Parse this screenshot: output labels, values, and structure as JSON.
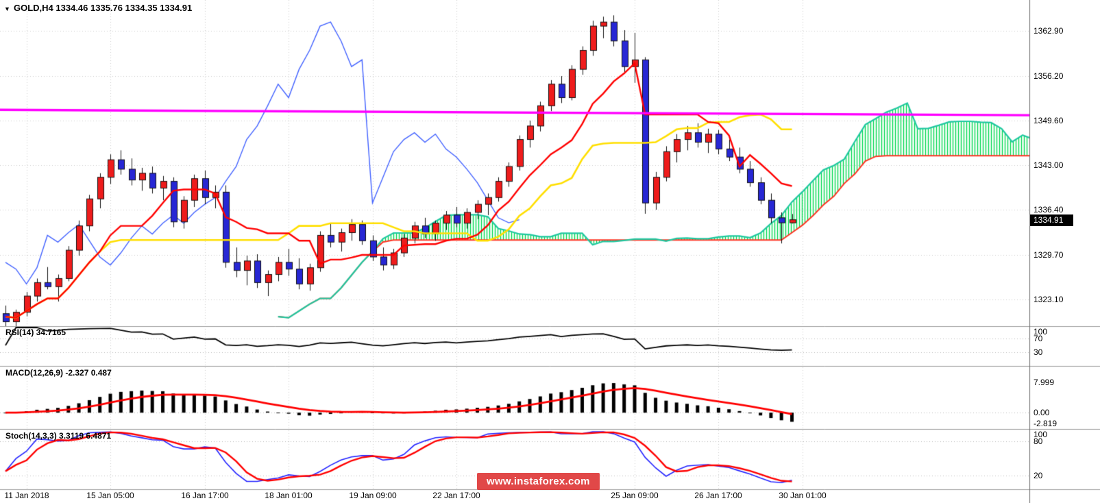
{
  "title": {
    "text": "GOLD,H4 1334.46 1335.76 1334.35 1334.91"
  },
  "watermark": {
    "text": "www.instaforex.com"
  },
  "chart_data": {
    "type": "candlestick",
    "symbol": "GOLD",
    "timeframe": "H4",
    "current_bar": {
      "open": 1334.46,
      "high": 1335.76,
      "low": 1334.35,
      "close": 1334.91
    },
    "price_axis": {
      "labels": [
        "1362.90",
        "1356.20",
        "1349.60",
        "1343.00",
        "1336.40",
        "1329.70",
        "1323.10"
      ],
      "current": 1334.91,
      "current_label": "1334.91"
    },
    "x_ticks": [
      {
        "label": "11 Jan 2018",
        "index": 2
      },
      {
        "label": "15 Jan 05:00",
        "index": 10
      },
      {
        "label": "16 Jan 17:00",
        "index": 19
      },
      {
        "label": "18 Jan 01:00",
        "index": 27
      },
      {
        "label": "19 Jan 09:00",
        "index": 35
      },
      {
        "label": "22 Jan 17:00",
        "index": 43
      },
      {
        "label": "25 Jan 09:00",
        "index": 60
      },
      {
        "label": "26 Jan 17:00",
        "index": 68
      },
      {
        "label": "30 Jan 01:00",
        "index": 76
      }
    ],
    "candles": [
      [
        1321.0,
        1322.2,
        1318.9,
        1319.8
      ],
      [
        1319.8,
        1321.6,
        1318.6,
        1321.2
      ],
      [
        1321.2,
        1324.2,
        1320.6,
        1323.6
      ],
      [
        1323.6,
        1326.2,
        1322.8,
        1325.6
      ],
      [
        1325.6,
        1327.9,
        1324.6,
        1325.0
      ],
      [
        1325.0,
        1326.8,
        1322.8,
        1326.2
      ],
      [
        1326.2,
        1331.0,
        1325.8,
        1330.4
      ],
      [
        1330.4,
        1334.8,
        1329.6,
        1334.0
      ],
      [
        1334.0,
        1338.6,
        1333.2,
        1338.0
      ],
      [
        1338.0,
        1341.8,
        1336.6,
        1341.2
      ],
      [
        1341.2,
        1344.6,
        1340.2,
        1343.8
      ],
      [
        1343.8,
        1345.2,
        1341.6,
        1342.4
      ],
      [
        1342.4,
        1344.0,
        1340.0,
        1340.8
      ],
      [
        1340.8,
        1342.6,
        1339.2,
        1341.8
      ],
      [
        1341.8,
        1342.8,
        1338.8,
        1339.6
      ],
      [
        1339.6,
        1341.4,
        1337.8,
        1340.6
      ],
      [
        1340.6,
        1341.2,
        1333.8,
        1334.6
      ],
      [
        1334.6,
        1338.4,
        1333.6,
        1337.8
      ],
      [
        1337.8,
        1341.6,
        1336.8,
        1341.0
      ],
      [
        1341.0,
        1342.2,
        1337.2,
        1338.2
      ],
      [
        1338.2,
        1340.0,
        1336.6,
        1339.0
      ],
      [
        1339.0,
        1340.0,
        1327.8,
        1328.6
      ],
      [
        1328.6,
        1330.8,
        1326.4,
        1327.4
      ],
      [
        1327.4,
        1329.6,
        1325.2,
        1328.8
      ],
      [
        1328.8,
        1329.8,
        1324.8,
        1325.6
      ],
      [
        1325.6,
        1327.4,
        1323.6,
        1326.8
      ],
      [
        1326.8,
        1329.4,
        1325.8,
        1328.6
      ],
      [
        1328.6,
        1330.6,
        1326.6,
        1327.6
      ],
      [
        1327.6,
        1329.2,
        1324.6,
        1325.4
      ],
      [
        1325.4,
        1328.4,
        1324.4,
        1327.8
      ],
      [
        1327.8,
        1333.2,
        1327.2,
        1332.6
      ],
      [
        1332.6,
        1334.4,
        1330.8,
        1331.6
      ],
      [
        1331.6,
        1333.6,
        1330.2,
        1333.0
      ],
      [
        1333.0,
        1335.0,
        1331.8,
        1334.2
      ],
      [
        1334.2,
        1334.8,
        1331.2,
        1331.8
      ],
      [
        1331.8,
        1332.6,
        1328.8,
        1329.4
      ],
      [
        1329.4,
        1330.8,
        1327.4,
        1328.2
      ],
      [
        1328.2,
        1330.6,
        1327.6,
        1330.0
      ],
      [
        1330.0,
        1332.8,
        1329.4,
        1332.2
      ],
      [
        1332.2,
        1334.6,
        1331.4,
        1334.0
      ],
      [
        1334.0,
        1335.2,
        1332.2,
        1332.8
      ],
      [
        1332.8,
        1334.8,
        1331.8,
        1334.4
      ],
      [
        1334.4,
        1336.2,
        1333.4,
        1335.6
      ],
      [
        1335.6,
        1336.8,
        1333.8,
        1334.4
      ],
      [
        1334.4,
        1336.6,
        1333.6,
        1336.0
      ],
      [
        1336.0,
        1337.8,
        1335.0,
        1337.2
      ],
      [
        1337.2,
        1338.8,
        1335.6,
        1338.2
      ],
      [
        1338.2,
        1341.2,
        1337.6,
        1340.6
      ],
      [
        1340.6,
        1343.4,
        1339.8,
        1342.8
      ],
      [
        1342.8,
        1347.4,
        1342.2,
        1346.8
      ],
      [
        1346.8,
        1349.6,
        1345.6,
        1348.8
      ],
      [
        1348.8,
        1352.4,
        1348.0,
        1351.8
      ],
      [
        1351.8,
        1355.6,
        1351.0,
        1355.0
      ],
      [
        1355.0,
        1356.2,
        1352.2,
        1353.0
      ],
      [
        1353.0,
        1357.8,
        1352.6,
        1357.2
      ],
      [
        1357.2,
        1360.6,
        1356.4,
        1360.0
      ],
      [
        1360.0,
        1364.4,
        1359.2,
        1363.6
      ],
      [
        1363.6,
        1365.0,
        1361.8,
        1364.2
      ],
      [
        1364.2,
        1365.2,
        1360.6,
        1361.4
      ],
      [
        1361.4,
        1363.0,
        1356.8,
        1357.6
      ],
      [
        1357.6,
        1362.6,
        1355.2,
        1358.6
      ],
      [
        1358.6,
        1359.0,
        1335.8,
        1337.4
      ],
      [
        1337.4,
        1342.0,
        1336.4,
        1341.2
      ],
      [
        1341.2,
        1345.8,
        1340.6,
        1345.0
      ],
      [
        1345.0,
        1347.6,
        1343.4,
        1346.8
      ],
      [
        1346.8,
        1348.8,
        1345.2,
        1347.8
      ],
      [
        1347.8,
        1349.2,
        1345.6,
        1346.4
      ],
      [
        1346.4,
        1348.4,
        1344.8,
        1347.6
      ],
      [
        1347.6,
        1348.2,
        1344.6,
        1345.4
      ],
      [
        1345.4,
        1346.8,
        1343.6,
        1344.2
      ],
      [
        1344.2,
        1345.6,
        1341.8,
        1342.4
      ],
      [
        1342.4,
        1343.6,
        1339.8,
        1340.4
      ],
      [
        1340.4,
        1341.2,
        1337.2,
        1337.8
      ],
      [
        1337.8,
        1338.8,
        1334.4,
        1335.2
      ],
      [
        1335.2,
        1336.0,
        1331.4,
        1334.46
      ],
      [
        1334.46,
        1335.76,
        1334.35,
        1334.91
      ]
    ],
    "ichimoku": {
      "tenkan_period": 9,
      "kijun_period": 26,
      "senkou_b_period": 52,
      "displacement": 26
    },
    "trendline": {
      "price_left": 1351.2,
      "price_right": 1350.4,
      "color": "#ff00ff"
    },
    "panes": [
      {
        "id": "rsi",
        "label": "RSI(14) 34.7165",
        "period": 14,
        "levels": [
          70,
          30
        ],
        "range": [
          0,
          100
        ],
        "scale_labels": [
          {
            "text": "100",
            "value": 100
          },
          {
            "text": "70",
            "value": 70
          },
          {
            "text": "30",
            "value": 30
          }
        ]
      },
      {
        "id": "macd",
        "label": "MACD(12,26,9) -2.327 0.487",
        "fast": 12,
        "slow": 26,
        "signal": 9,
        "levels": [
          0
        ],
        "range": [
          -3.6,
          12.0
        ],
        "scale_labels": [
          {
            "text": "7.999",
            "value": 7.999
          },
          {
            "text": "0.00",
            "value": 0
          },
          {
            "text": "-2.819",
            "value": -2.819
          }
        ]
      },
      {
        "id": "stoch",
        "label": "Stoch(14,3,3) 3.3119 6.4871",
        "k": 14,
        "d": 3,
        "slowing": 3,
        "levels": [
          80,
          20
        ],
        "range": [
          0,
          100
        ],
        "scale_labels": [
          {
            "text": "100",
            "value": 100
          },
          {
            "text": "80",
            "value": 80
          },
          {
            "text": "20",
            "value": 20
          }
        ]
      }
    ],
    "colors": {
      "bull": "#ee1c1c",
      "bear": "#2727d4",
      "wick": "#111111",
      "tenkan": "#ff0000",
      "kijun": "#ffdf00",
      "chikou": "#4262ff",
      "senkou_a": "#1fc8a0",
      "senkou_b": "#ff3322",
      "kumo_hatch": "#00d94f",
      "trendline": "#ff00ff",
      "grid": "#cdcdcd",
      "level": "#b5b5b5",
      "rsi_line": "#000000",
      "macd_hist": "#000000",
      "macd_signal": "#ff0000",
      "stoch_main": "#2222ff",
      "stoch_signal": "#ff0000",
      "badge_bg": "#000000",
      "badge_fg": "#ffffff"
    }
  }
}
